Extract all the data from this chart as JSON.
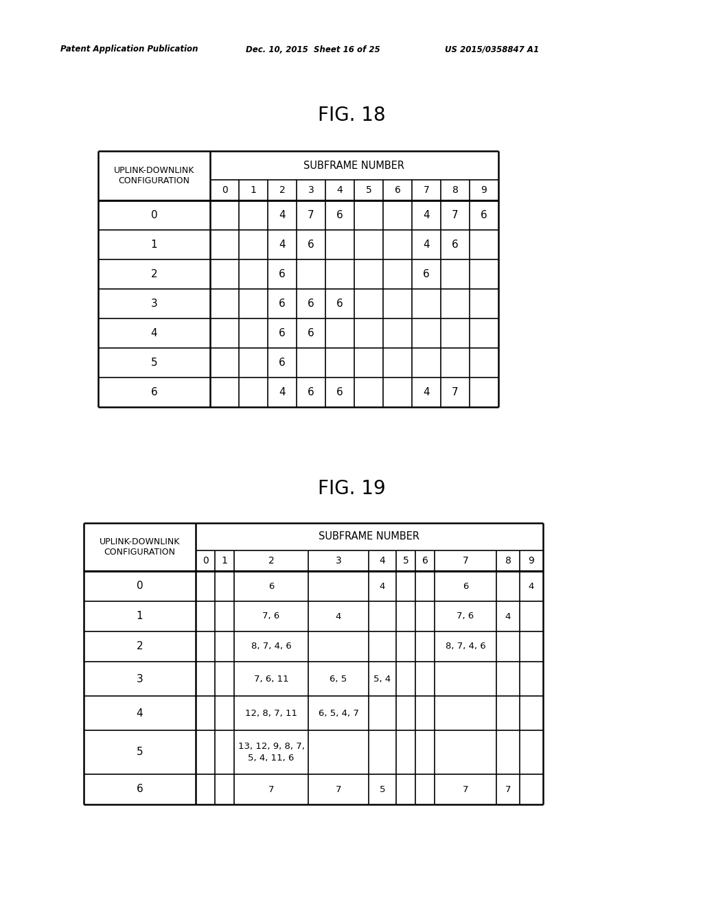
{
  "header_left": "Patent Application Publication",
  "header_mid": "Dec. 10, 2015  Sheet 16 of 25",
  "header_right": "US 2015/0358847 A1",
  "fig18_title": "FIG. 18",
  "fig19_title": "FIG. 19",
  "fig18": {
    "subframe_cols": [
      "0",
      "1",
      "2",
      "3",
      "4",
      "5",
      "6",
      "7",
      "8",
      "9"
    ],
    "config_rows": [
      "0",
      "1",
      "2",
      "3",
      "4",
      "5",
      "6"
    ],
    "data": [
      [
        "",
        "",
        "4",
        "7",
        "6",
        "",
        "",
        "4",
        "7",
        "6"
      ],
      [
        "",
        "",
        "4",
        "6",
        "",
        "",
        "",
        "4",
        "6",
        ""
      ],
      [
        "",
        "",
        "6",
        "",
        "",
        "",
        "",
        "6",
        "",
        ""
      ],
      [
        "",
        "",
        "6",
        "6",
        "6",
        "",
        "",
        "",
        "",
        ""
      ],
      [
        "",
        "",
        "6",
        "6",
        "",
        "",
        "",
        "",
        "",
        ""
      ],
      [
        "",
        "",
        "6",
        "",
        "",
        "",
        "",
        "",
        "",
        ""
      ],
      [
        "",
        "",
        "4",
        "6",
        "6",
        "",
        "",
        "4",
        "7",
        ""
      ]
    ]
  },
  "fig19": {
    "subframe_cols": [
      "0",
      "1",
      "2",
      "3",
      "4",
      "5",
      "6",
      "7",
      "8",
      "9"
    ],
    "config_rows": [
      "0",
      "1",
      "2",
      "3",
      "4",
      "5",
      "6"
    ],
    "data": [
      [
        "",
        "",
        "6",
        "",
        "4",
        "",
        "",
        "6",
        "",
        "4"
      ],
      [
        "",
        "",
        "7, 6",
        "4",
        "",
        "",
        "",
        "7, 6",
        "4",
        ""
      ],
      [
        "",
        "",
        "8, 7, 4, 6",
        "",
        "",
        "",
        "",
        "8, 7, 4, 6",
        "",
        ""
      ],
      [
        "",
        "",
        "7, 6, 11",
        "6, 5",
        "5, 4",
        "",
        "",
        "",
        "",
        ""
      ],
      [
        "",
        "",
        "12, 8, 7, 11",
        "6, 5, 4, 7",
        "",
        "",
        "",
        "",
        "",
        ""
      ],
      [
        "",
        "",
        "13, 12, 9, 8, 7,\n5, 4, 11, 6",
        "",
        "",
        "",
        "",
        "",
        "",
        ""
      ],
      [
        "",
        "",
        "7",
        "7",
        "5",
        "",
        "",
        "7",
        "7",
        ""
      ]
    ]
  },
  "bg_color": "#ffffff",
  "text_color": "#000000",
  "line_color": "#000000"
}
